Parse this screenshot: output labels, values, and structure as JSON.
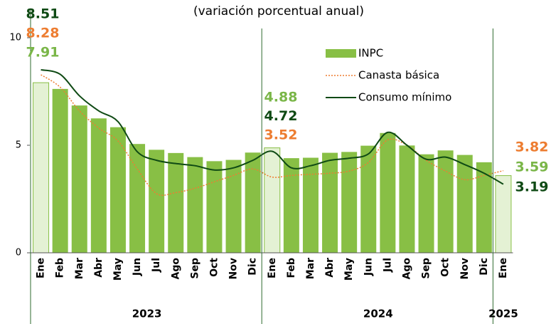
{
  "chart_data": {
    "type": "bar_line",
    "subtitle": "(variación porcentual anual)",
    "categories": [
      "Ene",
      "Feb",
      "Mar",
      "Abr",
      "May",
      "Jun",
      "Jul",
      "Ago",
      "Sep",
      "Oct",
      "Nov",
      "Dic",
      "Ene",
      "Feb",
      "Mar",
      "Abr",
      "May",
      "Jun",
      "Jul",
      "Ago",
      "Sep",
      "Oct",
      "Nov",
      "Dic",
      "Ene"
    ],
    "groups": [
      {
        "label": "2023",
        "count": 12
      },
      {
        "label": "2024",
        "count": 12
      },
      {
        "label": "2025",
        "count": 1
      }
    ],
    "ylim": [
      0,
      10
    ],
    "yticks": [
      0,
      5,
      10
    ],
    "highlight_color": "#e4f1d4",
    "series": [
      {
        "name": "INPC",
        "kind": "bar",
        "color": "#88bf45",
        "label_color": "#7ab648",
        "values": [
          7.91,
          7.62,
          6.85,
          6.25,
          5.84,
          5.06,
          4.79,
          4.64,
          4.45,
          4.26,
          4.32,
          4.66,
          4.88,
          4.4,
          4.42,
          4.65,
          4.69,
          4.98,
          5.57,
          4.99,
          4.58,
          4.76,
          4.55,
          4.21,
          3.59
        ],
        "value_labels": [
          "7.91",
          null,
          null,
          null,
          null,
          null,
          null,
          null,
          null,
          null,
          null,
          null,
          "4.88",
          null,
          null,
          null,
          null,
          null,
          null,
          null,
          null,
          null,
          null,
          null,
          "3.59"
        ]
      },
      {
        "name": "Canasta básica",
        "kind": "dotted",
        "color": "#ed7d31",
        "label_color": "#ed7d31",
        "values": [
          8.28,
          7.7,
          6.6,
          5.8,
          5.2,
          3.9,
          2.75,
          2.8,
          3.0,
          3.3,
          3.6,
          3.9,
          3.52,
          3.6,
          3.65,
          3.7,
          3.8,
          4.2,
          5.25,
          5.0,
          4.3,
          3.8,
          3.4,
          3.6,
          3.82
        ],
        "value_labels": [
          "8.28",
          null,
          null,
          null,
          null,
          null,
          null,
          null,
          null,
          null,
          null,
          null,
          "3.52",
          null,
          null,
          null,
          null,
          null,
          null,
          null,
          null,
          null,
          null,
          null,
          "3.82"
        ]
      },
      {
        "name": "Consumo mínimo",
        "kind": "line",
        "color": "#0f4a14",
        "label_color": "#0f4a14",
        "values": [
          8.51,
          8.3,
          7.3,
          6.6,
          6.1,
          4.7,
          4.3,
          4.15,
          4.05,
          3.85,
          3.95,
          4.3,
          4.72,
          3.95,
          4.05,
          4.3,
          4.4,
          4.6,
          5.6,
          5.0,
          4.35,
          4.45,
          4.1,
          3.7,
          3.19
        ],
        "value_labels": [
          "8.51",
          null,
          null,
          null,
          null,
          null,
          null,
          null,
          null,
          null,
          null,
          null,
          "4.72",
          null,
          null,
          null,
          null,
          null,
          null,
          null,
          null,
          null,
          null,
          null,
          "3.19"
        ]
      }
    ]
  }
}
